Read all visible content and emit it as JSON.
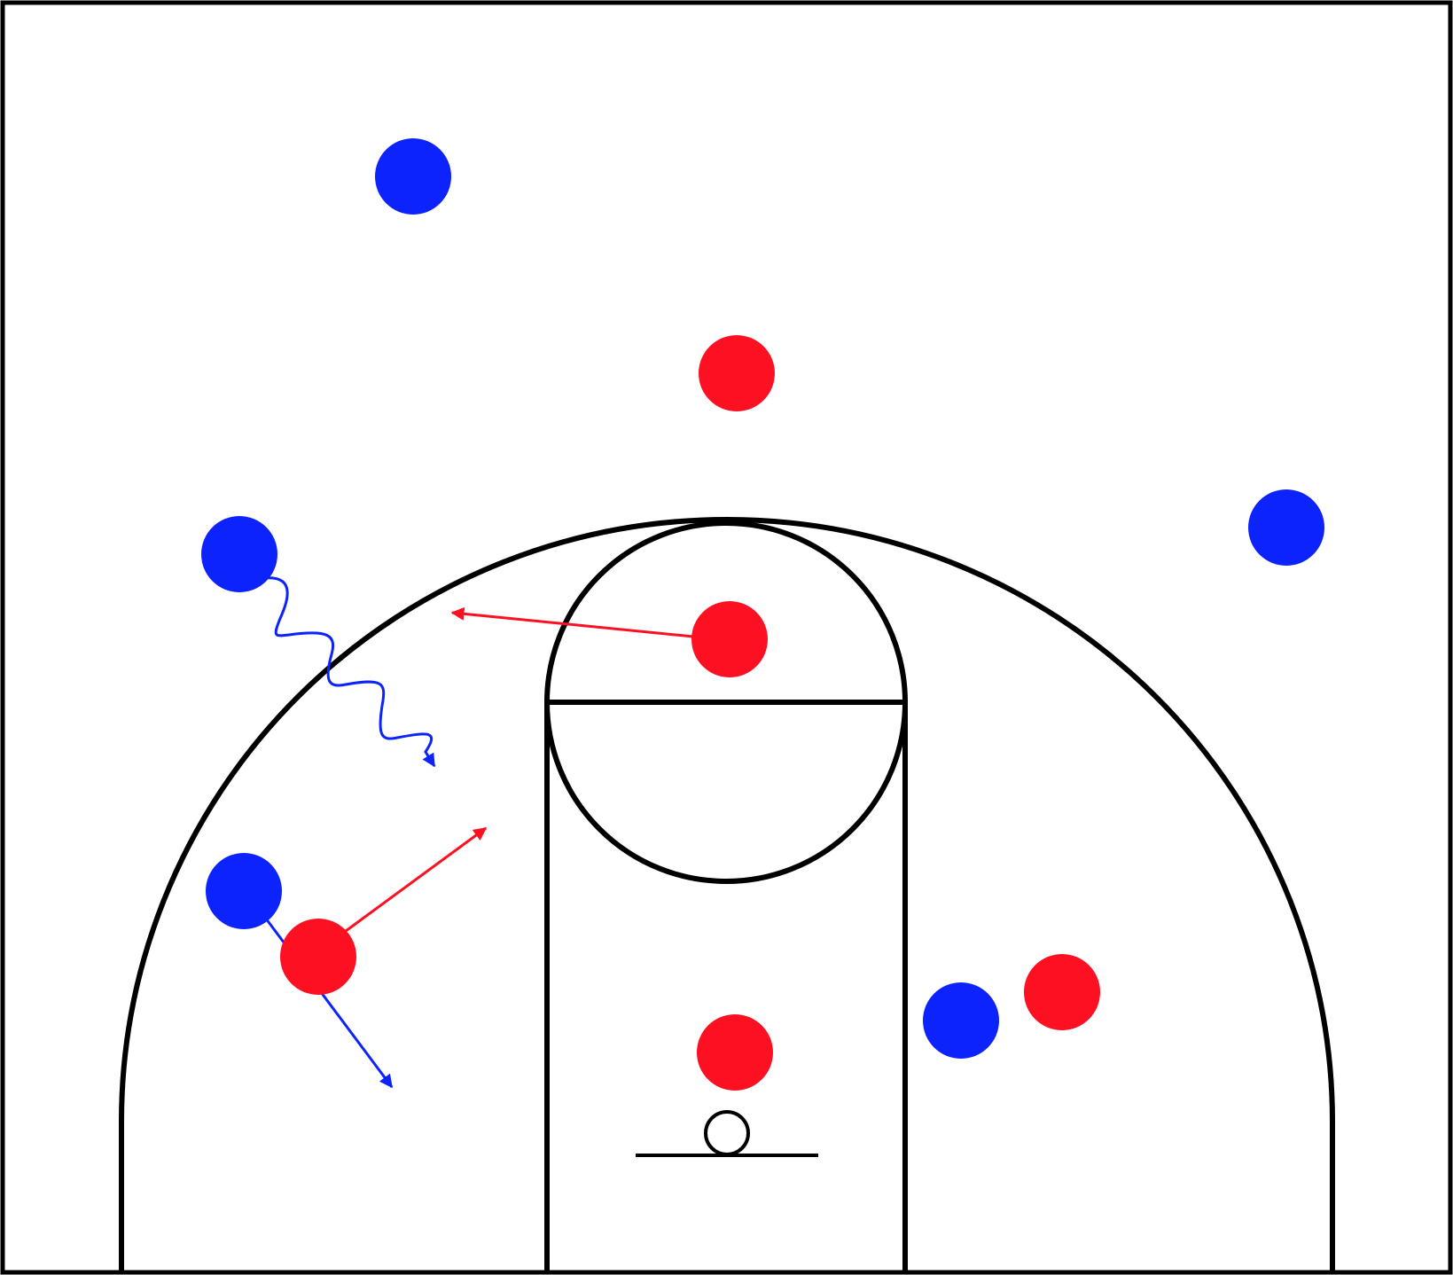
{
  "diagram": {
    "type": "basketball-half-court-play",
    "colors": {
      "court_lines": "#000000",
      "background": "#ffffff",
      "team_red": "#fc1021",
      "team_blue": "#0c23fc"
    },
    "players": [
      {
        "team": "blue",
        "label": ""
      },
      {
        "team": "red",
        "label": ""
      },
      {
        "team": "blue",
        "label": ""
      },
      {
        "team": "blue",
        "label": ""
      },
      {
        "team": "red",
        "label": ""
      },
      {
        "team": "blue",
        "label": ""
      },
      {
        "team": "red",
        "label": ""
      },
      {
        "team": "blue",
        "label": ""
      },
      {
        "team": "red",
        "label": ""
      },
      {
        "team": "red",
        "label": ""
      }
    ],
    "movements": [
      {
        "type": "pass",
        "color": "red"
      },
      {
        "type": "dribble",
        "color": "blue"
      },
      {
        "type": "pass",
        "color": "red"
      },
      {
        "type": "cut",
        "color": "blue"
      }
    ]
  }
}
